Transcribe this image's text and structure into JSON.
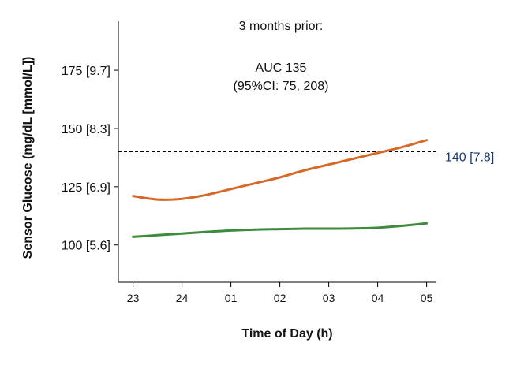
{
  "chart_data": {
    "type": "line",
    "xlabel": "Time of Day (h)",
    "ylabel": "Sensor Glucose (mg/dL [mmol/L])",
    "x_tick_labels": [
      "23",
      "24",
      "01",
      "02",
      "03",
      "04",
      "05"
    ],
    "y_ticks": [
      {
        "value": 100,
        "label": "100 [5.6]"
      },
      {
        "value": 125,
        "label": "125 [6.9]"
      },
      {
        "value": 150,
        "label": "150 [8.3]"
      },
      {
        "value": 175,
        "label": "175 [9.7]"
      }
    ],
    "xlim": [
      -0.3,
      6.2
    ],
    "ylim": [
      84,
      196
    ],
    "grid": false,
    "annotation": {
      "line1": "3 months prior:",
      "line2": "AUC 135",
      "line3": "(95%CI: 75, 208)"
    },
    "reference_line": {
      "value": 140,
      "label": "140 [7.8]",
      "color": "#1f3a68"
    },
    "series": [
      {
        "color": "#d4692a",
        "x": [
          0,
          0.5,
          1,
          1.5,
          2,
          2.5,
          3,
          3.5,
          4,
          4.5,
          5,
          5.5,
          6
        ],
        "y": [
          121,
          119.5,
          119.8,
          121.5,
          124,
          126.5,
          129,
          132,
          134.5,
          137,
          139.5,
          142,
          145
        ]
      },
      {
        "color": "#3d8b3d",
        "x": [
          0,
          0.5,
          1,
          1.5,
          2,
          2.5,
          3,
          3.5,
          4,
          4.5,
          5,
          5.5,
          6
        ],
        "y": [
          103.5,
          104.2,
          104.9,
          105.6,
          106.2,
          106.6,
          106.8,
          107,
          107,
          107.1,
          107.4,
          108.2,
          109.3
        ]
      }
    ]
  }
}
